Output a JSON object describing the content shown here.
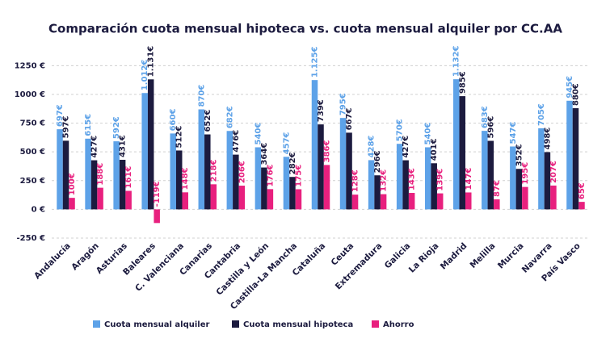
{
  "chart_data": {
    "type": "bar",
    "title": "Comparación cuota mensual hipoteca vs. cuota mensual alquiler por CC.AA",
    "categories": [
      "Andalucía",
      "Aragón",
      "Asturias",
      "Baleares",
      "C. Valenciana",
      "Canarias",
      "Cantabria",
      "Castilla y León",
      "Castilla-La Mancha",
      "Cataluña",
      "Ceuta",
      "Extremadura",
      "Galicia",
      "La Rioja",
      "Madrid",
      "Melilla",
      "Murcia",
      "Navarra",
      "País Vasco"
    ],
    "series": [
      {
        "name": "Cuota mensual alquiler",
        "color": "#5da2e8",
        "values": [
          697,
          615,
          592,
          1012,
          660,
          870,
          682,
          540,
          457,
          1125,
          795,
          428,
          570,
          540,
          1132,
          683,
          547,
          705,
          945
        ],
        "value_labels": [
          "697€",
          "615€",
          "592€",
          "1.012€",
          "660€",
          "870€",
          "682€",
          "540€",
          "457€",
          "1.125€",
          "795€",
          "428€",
          "570€",
          "540€",
          "1.132€",
          "683€",
          "547€",
          "705€",
          "945€"
        ]
      },
      {
        "name": "Cuota mensual hipoteca",
        "color": "#1c1b3f",
        "values": [
          597,
          427,
          431,
          1131,
          512,
          652,
          476,
          364,
          282,
          739,
          667,
          296,
          427,
          401,
          985,
          596,
          352,
          498,
          880
        ],
        "value_labels": [
          "597€",
          "427€",
          "431€",
          "1.131€",
          "512€",
          "652€",
          "476€",
          "364€",
          "282€",
          "739€",
          "667€",
          "296€",
          "427€",
          "401€",
          "985€",
          "596€",
          "352€",
          "498€",
          "880€"
        ]
      },
      {
        "name": "Ahorro",
        "color": "#e8207e",
        "values": [
          100,
          188,
          161,
          -119,
          148,
          218,
          206,
          176,
          175,
          386,
          128,
          132,
          143,
          139,
          147,
          87,
          195,
          207,
          65
        ],
        "value_labels": [
          "100€",
          "188€",
          "161€",
          "-119€",
          "148€",
          "218€",
          "206€",
          "176€",
          "175€",
          "386€",
          "128€",
          "132€",
          "143€",
          "139€",
          "147€",
          "87€",
          "195€",
          "207€",
          "65€"
        ]
      }
    ],
    "ylim": [
      -250,
      1400
    ],
    "yticks": [
      {
        "value": -250,
        "label": "-250 €"
      },
      {
        "value": 0,
        "label": "0 €"
      },
      {
        "value": 250,
        "label": "250 €"
      },
      {
        "value": 500,
        "label": "500 €"
      },
      {
        "value": 750,
        "label": "750 €"
      },
      {
        "value": 1000,
        "label": "1000 €"
      },
      {
        "value": 1250,
        "label": "1250 €"
      }
    ],
    "grid": true,
    "legend": "bottom"
  }
}
